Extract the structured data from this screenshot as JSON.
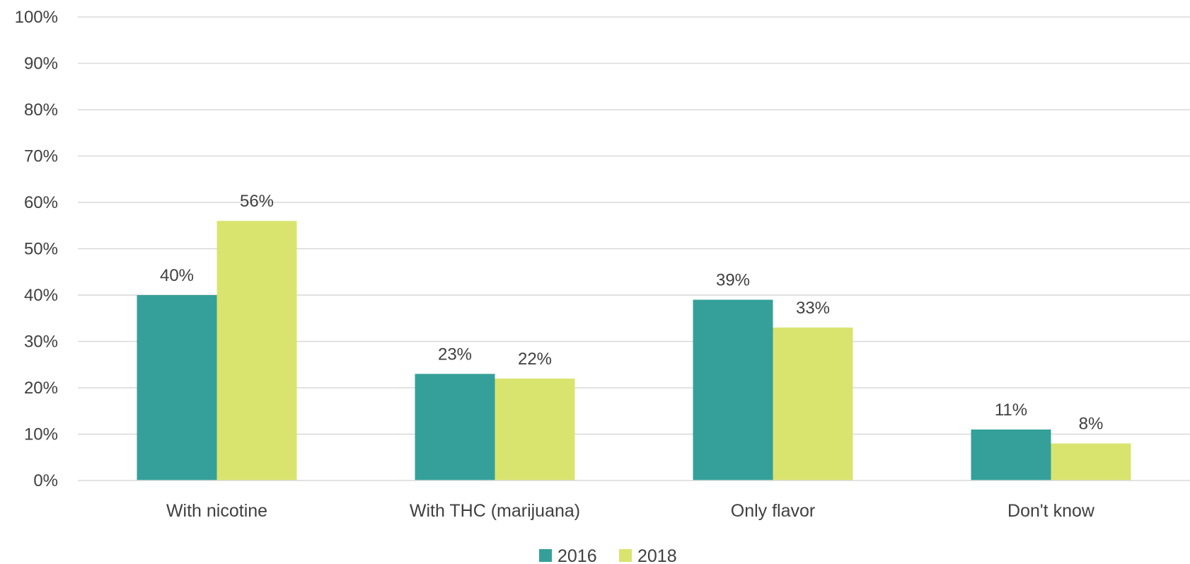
{
  "chart_data": {
    "type": "bar",
    "title": "",
    "xlabel": "",
    "ylabel": "",
    "categories": [
      "With nicotine",
      "With THC (marijuana)",
      "Only flavor",
      "Don't know"
    ],
    "series": [
      {
        "name": "2016",
        "values": [
          40,
          23,
          39,
          11
        ],
        "color": "#35A09A"
      },
      {
        "name": "2018",
        "values": [
          56,
          22,
          33,
          8
        ],
        "color": "#D9E46F"
      }
    ],
    "ylim": [
      0,
      100
    ],
    "yticks": [
      0,
      10,
      20,
      30,
      40,
      50,
      60,
      70,
      80,
      90,
      100
    ],
    "ytick_labels": [
      "0%",
      "10%",
      "20%",
      "30%",
      "40%",
      "50%",
      "60%",
      "70%",
      "80%",
      "90%",
      "100%"
    ],
    "data_labels": [
      [
        "40%",
        "23%",
        "39%",
        "11%"
      ],
      [
        "56%",
        "22%",
        "33%",
        "8%"
      ]
    ],
    "grid": true,
    "gridline_color": "#D9D9D9",
    "legend_position": "bottom-center"
  }
}
